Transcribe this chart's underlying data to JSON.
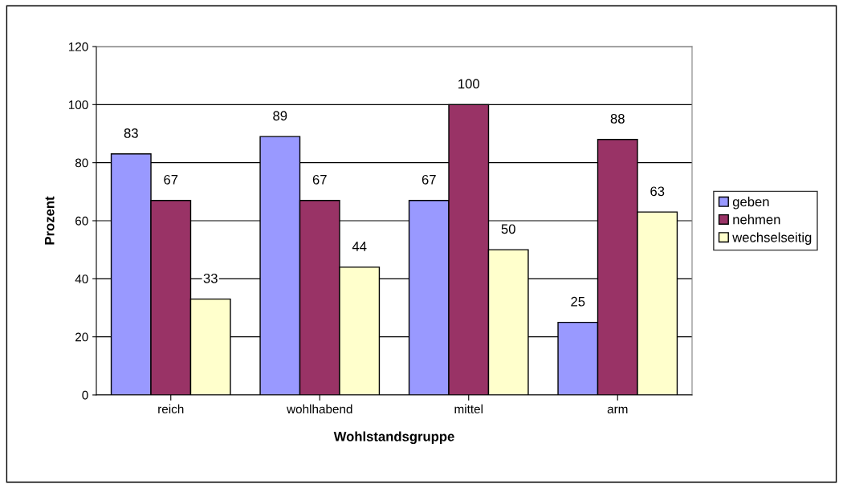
{
  "chart_data": {
    "type": "bar",
    "xlabel": "Wohlstandsgruppe",
    "ylabel": "Prozent",
    "categories": [
      "reich",
      "wohlhabend",
      "mittel",
      "arm"
    ],
    "series": [
      {
        "name": "geben",
        "color": "#9999ff",
        "values": [
          83,
          89,
          67,
          25
        ]
      },
      {
        "name": "nehmen",
        "color": "#993366",
        "values": [
          67,
          67,
          100,
          88
        ]
      },
      {
        "name": "wechselseitig",
        "color": "#ffffcc",
        "values": [
          33,
          44,
          50,
          63
        ]
      }
    ],
    "ylim": [
      0,
      120
    ],
    "yticks": [
      0,
      20,
      40,
      60,
      80,
      100,
      120
    ],
    "grid": "y",
    "legend": "right",
    "data_labels": true
  }
}
